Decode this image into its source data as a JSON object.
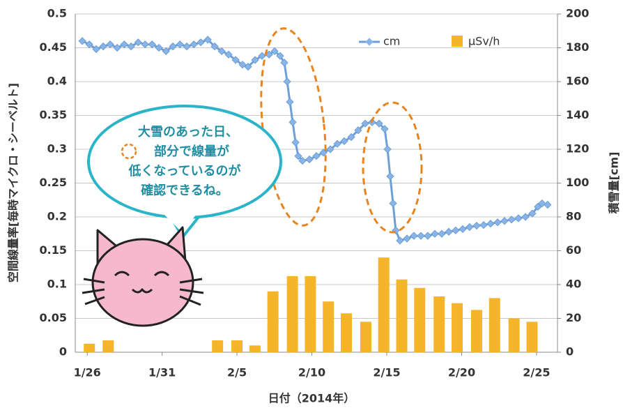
{
  "chart_data": {
    "type": "combo",
    "x_label": "日付（2014年）",
    "y_label": "空間線量率[毎時マイクロ・シーベルト]",
    "y2_label": "積雪量[cm]",
    "xlim": [
      -0.8,
      31.4
    ],
    "xticks": [
      {
        "value": 0,
        "label": "1/26"
      },
      {
        "value": 5,
        "label": "1/31"
      },
      {
        "value": 10,
        "label": "2/5"
      },
      {
        "value": 15,
        "label": "2/10"
      },
      {
        "value": 20,
        "label": "2/15"
      },
      {
        "value": 25,
        "label": "2/20"
      },
      {
        "value": 30,
        "label": "2/25"
      }
    ],
    "ylim": [
      0,
      0.5
    ],
    "yticks": [
      0,
      0.05,
      0.1,
      0.15,
      0.2,
      0.25,
      0.3,
      0.35,
      0.4,
      0.45,
      0.5
    ],
    "y2lim": [
      0,
      200
    ],
    "y2ticks": [
      0,
      20,
      40,
      60,
      80,
      100,
      120,
      140,
      160,
      180,
      200
    ],
    "grid": true,
    "legend": "top-right",
    "series": [
      {
        "name": "μSv/h",
        "type": "bar",
        "axis": "y2",
        "color": "#f5b52a",
        "x": [
          0.14,
          1.4,
          8.7,
          10.0,
          11.2,
          12.4,
          13.7,
          14.9,
          16.1,
          17.3,
          18.6,
          19.8,
          21.0,
          22.2,
          23.5,
          24.7,
          26.0,
          27.2,
          28.5,
          29.7
        ],
        "values": [
          5,
          7,
          7,
          7,
          4,
          36,
          45,
          45,
          30,
          23,
          18,
          56,
          43,
          38,
          33,
          29,
          25,
          32,
          20,
          18
        ]
      },
      {
        "name": "cm",
        "type": "line",
        "axis": "y",
        "color": "#6b9fd6",
        "x": [
          -0.33,
          0.14,
          0.6,
          1.07,
          1.53,
          2.0,
          2.47,
          2.93,
          3.4,
          3.86,
          4.33,
          4.79,
          5.26,
          5.72,
          6.19,
          6.65,
          7.12,
          7.58,
          8.05,
          8.51,
          8.98,
          9.44,
          9.91,
          10.37,
          10.74,
          11.21,
          11.67,
          12.14,
          12.51,
          12.88,
          13.16,
          13.35,
          13.53,
          13.72,
          13.91,
          14.09,
          14.37,
          14.84,
          15.3,
          15.77,
          16.23,
          16.7,
          17.16,
          17.63,
          18.09,
          18.56,
          19.02,
          19.49,
          19.86,
          20.05,
          20.23,
          20.42,
          20.6,
          20.88,
          21.35,
          21.81,
          22.28,
          22.74,
          23.21,
          23.67,
          24.14,
          24.6,
          25.07,
          25.53,
          26.0,
          26.47,
          26.93,
          27.4,
          27.86,
          28.33,
          28.79,
          29.26,
          29.72,
          30.09,
          30.37,
          30.74
        ],
        "values": [
          0.46,
          0.455,
          0.448,
          0.452,
          0.455,
          0.45,
          0.455,
          0.452,
          0.458,
          0.455,
          0.455,
          0.45,
          0.445,
          0.452,
          0.455,
          0.452,
          0.455,
          0.458,
          0.462,
          0.452,
          0.445,
          0.44,
          0.432,
          0.425,
          0.422,
          0.432,
          0.438,
          0.44,
          0.445,
          0.438,
          0.428,
          0.4,
          0.37,
          0.34,
          0.31,
          0.29,
          0.283,
          0.285,
          0.29,
          0.295,
          0.3,
          0.308,
          0.312,
          0.318,
          0.328,
          0.338,
          0.34,
          0.338,
          0.33,
          0.3,
          0.26,
          0.22,
          0.18,
          0.165,
          0.168,
          0.172,
          0.172,
          0.172,
          0.175,
          0.175,
          0.178,
          0.18,
          0.182,
          0.185,
          0.187,
          0.188,
          0.19,
          0.192,
          0.194,
          0.196,
          0.198,
          0.2,
          0.205,
          0.215,
          0.22,
          0.218
        ]
      }
    ],
    "annotations": [
      "大雪のあった日、",
      "部分で線量が",
      "低くなっているのが",
      "確認できるね。"
    ]
  }
}
